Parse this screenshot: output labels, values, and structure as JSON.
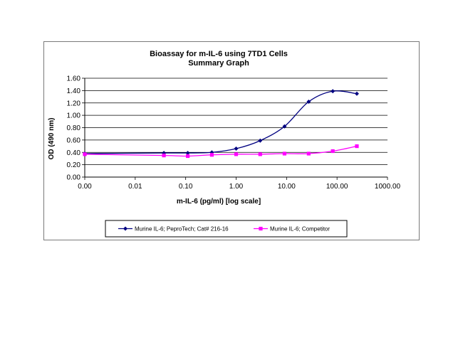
{
  "chart_data": {
    "type": "line",
    "title": "Bioassay for m-IL-6 using 7TD1 Cells",
    "subtitle": "Summary Graph",
    "xlabel": "m-IL-6 (pg/ml) [log scale]",
    "ylabel": "OD (490 nm)",
    "xscale": "log",
    "xlim": [
      0.001,
      1000
    ],
    "ylim": [
      0,
      1.6
    ],
    "x_tick_labels": [
      "0.00",
      "0.01",
      "0.10",
      "1.00",
      "10.00",
      "100.00",
      "1000.00"
    ],
    "y_tick_labels": [
      "0.00",
      "0.20",
      "0.40",
      "0.60",
      "0.80",
      "1.00",
      "1.20",
      "1.40",
      "1.60"
    ],
    "grid": "horizontal",
    "legend_position": "bottom",
    "series": [
      {
        "name": "Murine IL-6; PeproTech; Cat# 216-16",
        "color": "#000080",
        "marker": "diamond",
        "x": [
          0.001,
          0.037,
          0.11,
          0.33,
          1.0,
          3.0,
          9.1,
          27.4,
          82.3,
          247
        ],
        "y": [
          0.38,
          0.39,
          0.39,
          0.4,
          0.46,
          0.59,
          0.82,
          1.22,
          1.39,
          1.35
        ]
      },
      {
        "name": "Murine IL-6; Competitor",
        "color": "#FF00FF",
        "marker": "square",
        "x": [
          0.001,
          0.037,
          0.11,
          0.33,
          1.0,
          3.0,
          9.1,
          27.4,
          82.3,
          247
        ],
        "y": [
          0.37,
          0.35,
          0.34,
          0.36,
          0.37,
          0.37,
          0.38,
          0.38,
          0.42,
          0.5
        ]
      }
    ]
  }
}
